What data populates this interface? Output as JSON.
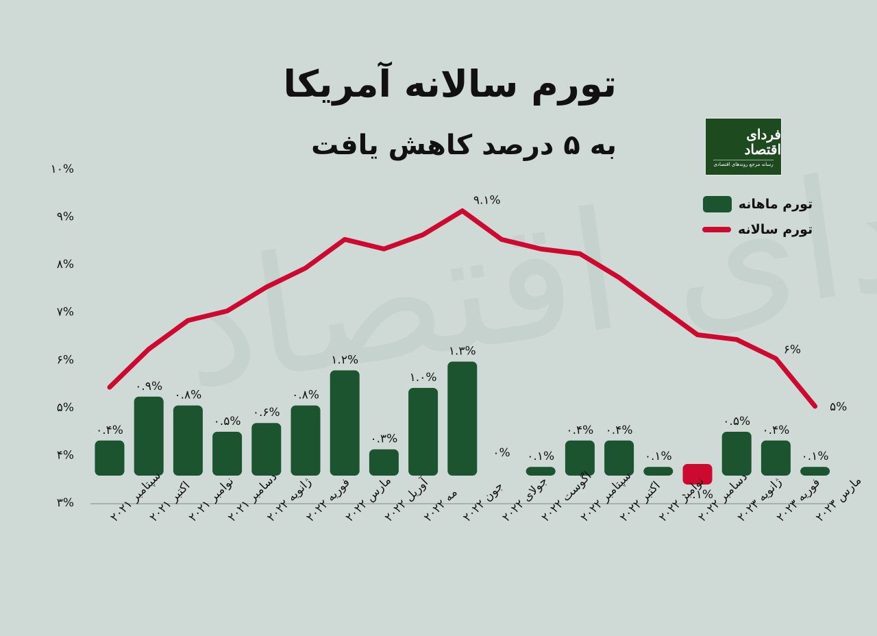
{
  "header": {
    "title": "تورم سالانه آمریکا",
    "subtitle": "به ۵ درصد کاهش یافت"
  },
  "logo": {
    "brand": "فردای اقتصاد",
    "tagline": "رسانه مرجع روندهای اقتصادی"
  },
  "watermark": "فردای اقتصاد",
  "legend": {
    "monthly_label": "تورم ماهانه",
    "annual_label": "تورم سالانه"
  },
  "colors": {
    "background": "#cfd9d6",
    "bar_positive": "#1c5430",
    "bar_negative": "#cc0a30",
    "line": "#cc0a30",
    "axis": "#9aa3a1",
    "text": "#111111"
  },
  "chart_data": {
    "type": "bar+line",
    "title": "تورم سالانه آمریکا",
    "subtitle": "به ۵ درصد کاهش یافت",
    "categories": [
      "سپتامبر ۲۰۲۱",
      "اکتبر ۲۰۲۱",
      "نوامبر ۲۰۲۱",
      "دسامبر ۲۰۲۱",
      "ژانویه ۲۰۲۲",
      "فوریه ۲۰۲۲",
      "مارس ۲۰۲۲",
      "آوریل ۲۰۲۲",
      "مه ۲۰۲۲",
      "جون ۲۰۲۲",
      "جولای ۲۰۲۲",
      "اگوست ۲۰۲۲",
      "سپتامبر ۲۰۲۲",
      "اکتبر ۲۰۲۲",
      "نوامبر ۲۰۲۲",
      "دسامبر ۲۰۲۲",
      "ژانویه ۲۰۲۳",
      "فوریه ۲۰۲۳",
      "مارس ۲۰۲۳"
    ],
    "series": [
      {
        "name": "تورم ماهانه",
        "type": "bar",
        "values": [
          0.4,
          0.9,
          0.8,
          0.5,
          0.6,
          0.8,
          1.2,
          0.3,
          1.0,
          1.3,
          0.0,
          0.1,
          0.4,
          0.4,
          0.1,
          -0.1,
          0.5,
          0.4,
          0.1
        ],
        "labels": [
          "۰.۴%",
          "۰.۹%",
          "۰.۸%",
          "۰.۵%",
          "۰.۶%",
          "۰.۸%",
          "۱.۲%",
          "۰.۳%",
          "۱.۰%",
          "۱.۳%",
          "۰%",
          "۰.۱%",
          "۰.۴%",
          "۰.۴%",
          "۰.۱%",
          "-۰.۱%",
          "۰.۵%",
          "۰.۴%",
          "۰.۱%"
        ]
      },
      {
        "name": "تورم سالانه",
        "type": "line",
        "values": [
          5.4,
          6.2,
          6.8,
          7.0,
          7.5,
          7.9,
          8.5,
          8.3,
          8.6,
          9.1,
          8.5,
          8.3,
          8.2,
          7.7,
          7.1,
          6.5,
          6.4,
          6.0,
          5.0
        ],
        "annotations": [
          {
            "index": 9,
            "label": "۹.۱%"
          },
          {
            "index": 17,
            "label": "۶%"
          },
          {
            "index": 18,
            "label": "۵%"
          }
        ]
      }
    ],
    "yticks": [
      "۱۰%",
      "۹%",
      "۸%",
      "۷%",
      "۶%",
      "۵%",
      "۴%",
      "۳%"
    ],
    "ylim": [
      3,
      10
    ],
    "xlabel": "",
    "ylabel": "",
    "grid": false,
    "legend_position": "top-right"
  }
}
